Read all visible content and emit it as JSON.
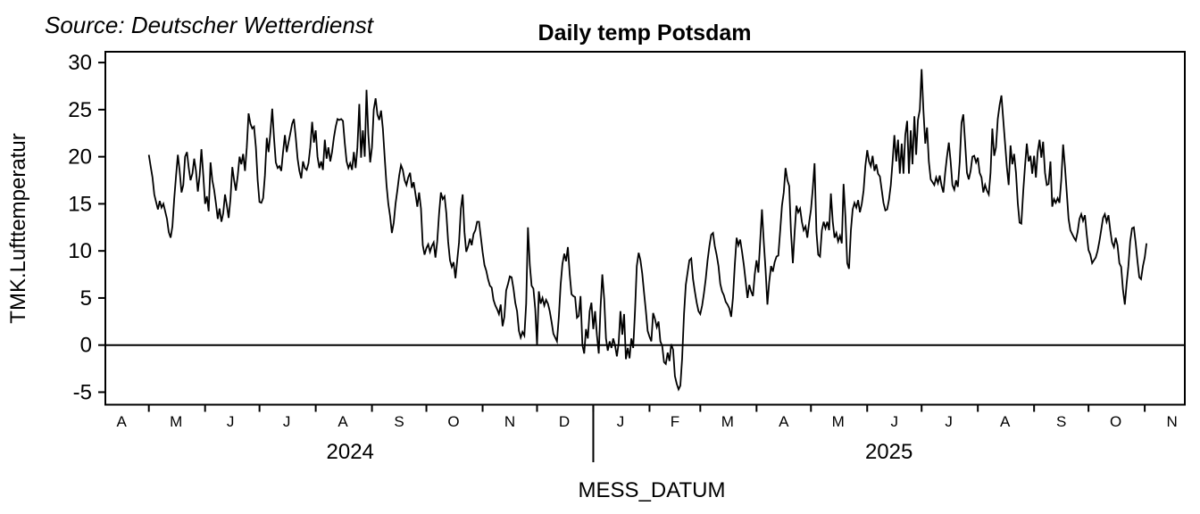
{
  "annotation": {
    "source": "Source: Deutscher Wetterdienst"
  },
  "chart_data": {
    "type": "line",
    "title": "Daily temp Potsdam",
    "xlabel": "MESS_DATUM",
    "ylabel": "TMK.Lufttemperatur",
    "ylim": [
      -6.5,
      30.5
    ],
    "y_ticks": [
      30,
      25,
      20,
      15,
      10,
      5,
      0,
      -5
    ],
    "grid": false,
    "legend": "none",
    "zero_line": true,
    "line_color": "#000000",
    "background": "#ffffff",
    "x_axis": {
      "start_date": "2024-05-01",
      "frequency": "daily",
      "month_tick_days": [
        0,
        31,
        61,
        92,
        123,
        153,
        184,
        214,
        245,
        276,
        304,
        335,
        365,
        396,
        426,
        457,
        488,
        518,
        549
      ],
      "month_labels": [
        {
          "label": "A",
          "day": -15
        },
        {
          "label": "M",
          "day": 15
        },
        {
          "label": "J",
          "day": 45
        },
        {
          "label": "J",
          "day": 76
        },
        {
          "label": "A",
          "day": 107
        },
        {
          "label": "S",
          "day": 138
        },
        {
          "label": "O",
          "day": 168
        },
        {
          "label": "N",
          "day": 199
        },
        {
          "label": "D",
          "day": 229
        },
        {
          "label": "J",
          "day": 260
        },
        {
          "label": "F",
          "day": 290
        },
        {
          "label": "M",
          "day": 319
        },
        {
          "label": "A",
          "day": 350
        },
        {
          "label": "M",
          "day": 380
        },
        {
          "label": "J",
          "day": 411
        },
        {
          "label": "J",
          "day": 441
        },
        {
          "label": "A",
          "day": 472
        },
        {
          "label": "S",
          "day": 503
        },
        {
          "label": "O",
          "day": 533
        },
        {
          "label": "N",
          "day": 564
        }
      ],
      "year_labels": [
        {
          "label": "2024",
          "day": 111
        },
        {
          "label": "2025",
          "day": 408
        }
      ],
      "year_separator_day": 245
    },
    "series": [
      {
        "name": "TMK.Lufttemperatur",
        "start_day": 0,
        "values": [
          20.2,
          19.0,
          17.8,
          16.0,
          15.2,
          14.4,
          15.3,
          14.6,
          15.0,
          14.2,
          13.4,
          12.0,
          11.4,
          12.6,
          15.5,
          18.0,
          20.2,
          18.5,
          16.2,
          17.0,
          20.0,
          20.5,
          18.8,
          17.5,
          18.2,
          19.8,
          18.5,
          16.3,
          18.0,
          20.8,
          18.0,
          15.0,
          15.8,
          14.2,
          19.4,
          17.5,
          16.5,
          15.0,
          13.4,
          14.5,
          13.1,
          14.0,
          16.0,
          14.8,
          13.5,
          15.5,
          18.9,
          17.5,
          16.4,
          18.0,
          20.0,
          19.2,
          20.3,
          18.5,
          21.0,
          24.6,
          23.5,
          23.0,
          23.2,
          21.0,
          17.5,
          15.2,
          15.1,
          15.6,
          18.0,
          22.0,
          20.5,
          22.5,
          25.1,
          22.0,
          19.4,
          18.8,
          19.0,
          18.5,
          20.5,
          22.3,
          20.5,
          21.5,
          22.5,
          23.5,
          24.0,
          22.0,
          19.8,
          18.5,
          17.7,
          19.5,
          18.8,
          18.6,
          19.3,
          21.0,
          23.7,
          21.5,
          22.8,
          20.0,
          18.8,
          19.5,
          18.6,
          21.8,
          19.8,
          21.0,
          19.5,
          20.5,
          22.0,
          23.2,
          24.0,
          23.9,
          24.0,
          23.8,
          21.5,
          19.5,
          18.8,
          19.3,
          18.6,
          20.5,
          18.8,
          21.0,
          25.6,
          19.9,
          22.8,
          20.0,
          27.1,
          22.4,
          19.4,
          21.0,
          25.0,
          26.2,
          24.5,
          23.9,
          24.9,
          23.0,
          20.0,
          17.0,
          15.0,
          13.7,
          11.9,
          13.0,
          15.0,
          16.4,
          18.0,
          19.1,
          18.6,
          17.5,
          17.0,
          17.8,
          18.3,
          16.7,
          17.3,
          16.0,
          14.7,
          16.2,
          14.5,
          10.6,
          9.6,
          10.3,
          10.7,
          9.9,
          10.5,
          10.9,
          9.3,
          11.0,
          14.0,
          16.2,
          15.5,
          15.8,
          14.0,
          11.0,
          9.0,
          8.3,
          8.8,
          7.1,
          9.0,
          10.9,
          14.5,
          16.0,
          12.0,
          9.9,
          10.5,
          11.3,
          10.6,
          11.8,
          12.2,
          13.1,
          13.1,
          11.5,
          9.9,
          8.5,
          7.9,
          7.0,
          6.3,
          6.1,
          4.8,
          4.2,
          3.8,
          3.3,
          4.3,
          2.0,
          3.0,
          5.8,
          6.5,
          7.3,
          7.2,
          6.0,
          4.5,
          3.6,
          1.5,
          0.8,
          1.4,
          1.0,
          4.4,
          12.5,
          8.5,
          6.3,
          6.0,
          3.8,
          0.0,
          5.7,
          4.4,
          5.0,
          4.2,
          4.8,
          4.4,
          3.6,
          2.5,
          1.2,
          0.8,
          0.4,
          3.0,
          6.4,
          8.6,
          9.7,
          8.9,
          10.4,
          7.5,
          5.4,
          5.2,
          5.1,
          2.9,
          3.1,
          5.2,
          0.0,
          -0.9,
          1.7,
          0.7,
          3.6,
          4.5,
          1.7,
          3.6,
          1.1,
          -0.9,
          4.0,
          7.5,
          4.9,
          0.7,
          -0.6,
          0.4,
          -0.3,
          0.7,
          0.0,
          -1.2,
          0.2,
          3.6,
          1.1,
          3.3,
          -1.5,
          -0.3,
          -1.4,
          0.7,
          -0.3,
          3.6,
          8.4,
          9.8,
          9.0,
          7.6,
          5.5,
          3.6,
          1.5,
          0.9,
          0.4,
          3.4,
          2.8,
          1.9,
          2.5,
          0.4,
          -0.1,
          -1.8,
          -2.0,
          -0.8,
          -1.7,
          0.1,
          -0.5,
          -3.3,
          -4.1,
          -4.7,
          -4.3,
          -1.4,
          3.3,
          6.4,
          7.7,
          9.0,
          9.2,
          7.0,
          5.7,
          4.5,
          3.6,
          3.3,
          4.2,
          5.5,
          7.0,
          9.0,
          10.5,
          11.7,
          11.9,
          10.5,
          9.6,
          8.4,
          6.5,
          5.7,
          5.3,
          4.6,
          4.3,
          3.9,
          3.0,
          5.0,
          8.4,
          11.4,
          10.6,
          11.2,
          9.9,
          8.5,
          6.8,
          5.0,
          6.4,
          5.7,
          5.2,
          7.5,
          9.0,
          7.7,
          11.0,
          14.4,
          11.0,
          7.9,
          4.3,
          6.7,
          8.4,
          7.8,
          8.8,
          9.4,
          9.5,
          12.0,
          14.8,
          16.2,
          18.8,
          17.5,
          16.9,
          12.0,
          8.7,
          12.0,
          14.8,
          14.1,
          14.5,
          13.1,
          12.2,
          12.6,
          11.4,
          13.0,
          14.4,
          16.6,
          19.3,
          12.0,
          9.6,
          9.4,
          12.2,
          13.1,
          12.4,
          13.1,
          12.2,
          16.1,
          13.1,
          11.4,
          11.9,
          11.0,
          11.6,
          10.8,
          17.1,
          13.6,
          8.7,
          8.1,
          12.2,
          14.4,
          15.1,
          14.6,
          15.4,
          14.1,
          15.0,
          16.4,
          19.0,
          20.7,
          19.5,
          19.0,
          20.1,
          18.5,
          19.2,
          18.2,
          17.9,
          16.5,
          15.1,
          14.3,
          14.4,
          15.4,
          17.0,
          19.5,
          22.3,
          19.5,
          21.8,
          18.2,
          21.4,
          18.2,
          22.3,
          23.8,
          18.2,
          22.8,
          19.2,
          24.3,
          20.2,
          23.9,
          25.0,
          29.3,
          25.0,
          21.4,
          23.1,
          19.5,
          17.6,
          17.3,
          17.0,
          17.8,
          17.2,
          18.0,
          16.9,
          16.2,
          18.3,
          20.0,
          21.5,
          19.5,
          17.0,
          16.5,
          17.5,
          16.8,
          19.5,
          23.6,
          24.5,
          21.4,
          18.3,
          17.6,
          18.5,
          20.0,
          20.1,
          19.4,
          19.9,
          18.3,
          17.8,
          16.2,
          17.0,
          16.4,
          16.0,
          18.3,
          23.0,
          20.1,
          21.0,
          24.0,
          25.5,
          26.5,
          24.0,
          21.4,
          18.9,
          17.0,
          21.2,
          19.2,
          20.3,
          18.3,
          15.1,
          13.0,
          12.9,
          16.3,
          19.0,
          21.4,
          19.5,
          20.1,
          18.2,
          20.1,
          17.8,
          20.5,
          21.8,
          19.9,
          21.6,
          18.3,
          17.0,
          17.1,
          19.5,
          14.7,
          15.5,
          15.1,
          15.6,
          15.1,
          17.5,
          21.3,
          19.0,
          16.3,
          13.4,
          12.2,
          11.8,
          11.4,
          11.1,
          12.0,
          13.4,
          13.9,
          13.2,
          13.8,
          11.8,
          10.1,
          9.6,
          8.7,
          9.0,
          9.3,
          10.0,
          11.0,
          12.2,
          13.5,
          13.9,
          13.1,
          13.8,
          12.2,
          10.9,
          10.4,
          11.4,
          10.6,
          8.7,
          8.3,
          5.9,
          4.3,
          6.5,
          8.4,
          11.0,
          12.4,
          12.5,
          10.9,
          8.9,
          7.2,
          7.0,
          8.4,
          9.3,
          10.8
        ]
      }
    ]
  }
}
